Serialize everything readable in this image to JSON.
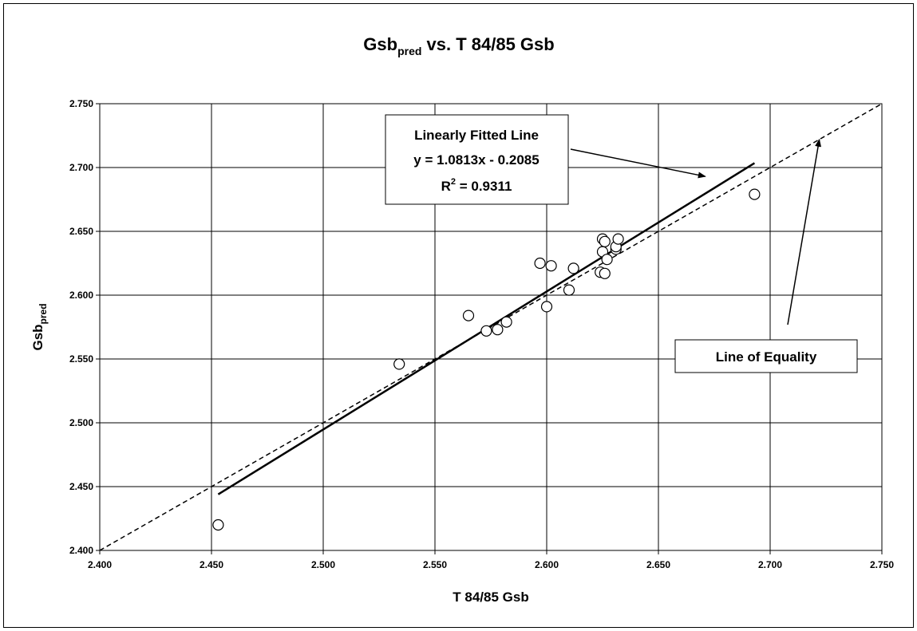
{
  "chart_data": {
    "type": "scatter",
    "title": {
      "main": "Gsb",
      "sub": "pred",
      "rest": " vs. T 84/85 Gsb"
    },
    "xlabel": "T 84/85 Gsb",
    "ylabel": {
      "main": "Gsb",
      "sub": "pred"
    },
    "xlim": [
      2.4,
      2.75
    ],
    "ylim": [
      2.4,
      2.75
    ],
    "xticks": [
      "2.400",
      "2.450",
      "2.500",
      "2.550",
      "2.600",
      "2.650",
      "2.700",
      "2.750"
    ],
    "yticks": [
      "2.400",
      "2.450",
      "2.500",
      "2.550",
      "2.600",
      "2.650",
      "2.700",
      "2.750"
    ],
    "grid": true,
    "points": [
      {
        "x": 2.453,
        "y": 2.42
      },
      {
        "x": 2.534,
        "y": 2.546
      },
      {
        "x": 2.565,
        "y": 2.584
      },
      {
        "x": 2.573,
        "y": 2.572
      },
      {
        "x": 2.578,
        "y": 2.573
      },
      {
        "x": 2.582,
        "y": 2.579
      },
      {
        "x": 2.597,
        "y": 2.625
      },
      {
        "x": 2.6,
        "y": 2.591
      },
      {
        "x": 2.602,
        "y": 2.623
      },
      {
        "x": 2.61,
        "y": 2.604
      },
      {
        "x": 2.612,
        "y": 2.621
      },
      {
        "x": 2.624,
        "y": 2.618
      },
      {
        "x": 2.625,
        "y": 2.644
      },
      {
        "x": 2.625,
        "y": 2.634
      },
      {
        "x": 2.626,
        "y": 2.617
      },
      {
        "x": 2.626,
        "y": 2.642
      },
      {
        "x": 2.627,
        "y": 2.628
      },
      {
        "x": 2.631,
        "y": 2.636
      },
      {
        "x": 2.631,
        "y": 2.638
      },
      {
        "x": 2.632,
        "y": 2.644
      },
      {
        "x": 2.693,
        "y": 2.679
      }
    ],
    "fitted_line": {
      "slope": 1.0813,
      "intercept": -0.2085,
      "x_range": [
        2.453,
        2.693
      ]
    },
    "equality_line": {
      "x_range": [
        2.4,
        2.75
      ]
    },
    "annotations": {
      "fit": {
        "line1": "Linearly Fitted Line",
        "line2": "y = 1.0813x - 0.2085",
        "line3_main": "R",
        "line3_sup": "2",
        "line3_rest": " = 0.9311",
        "arrow_to": {
          "x": 2.671,
          "y": 2.693
        }
      },
      "equality": {
        "label": "Line of Equality",
        "arrow_to": {
          "x": 2.722,
          "y": 2.722
        }
      }
    }
  }
}
